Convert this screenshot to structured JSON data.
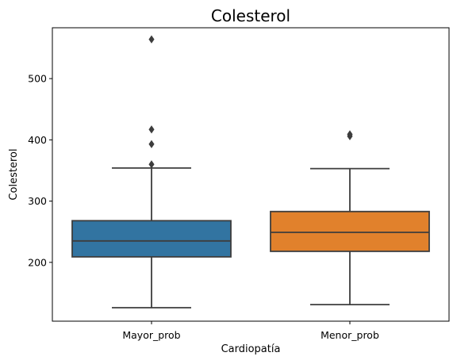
{
  "chart_data": {
    "type": "box",
    "title": "Colesterol",
    "xlabel": "Cardiopatía",
    "ylabel": "Colesterol",
    "ylim": [
      104,
      583
    ],
    "yticks": [
      200,
      300,
      400,
      500
    ],
    "grid": false,
    "legend": "none",
    "categories": [
      "Mayor_prob",
      "Menor_prob"
    ],
    "boxes": [
      {
        "category": "Mayor_prob",
        "color": "#3274a1",
        "whisker_low": 126,
        "q1": 209,
        "median": 235,
        "q3": 268,
        "whisker_high": 354,
        "outliers": [
          360,
          393,
          417,
          564
        ]
      },
      {
        "category": "Menor_prob",
        "color": "#e1812c",
        "whisker_low": 131,
        "q1": 218,
        "median": 249,
        "q3": 283,
        "whisker_high": 353,
        "outliers": [
          406,
          409
        ]
      }
    ]
  }
}
